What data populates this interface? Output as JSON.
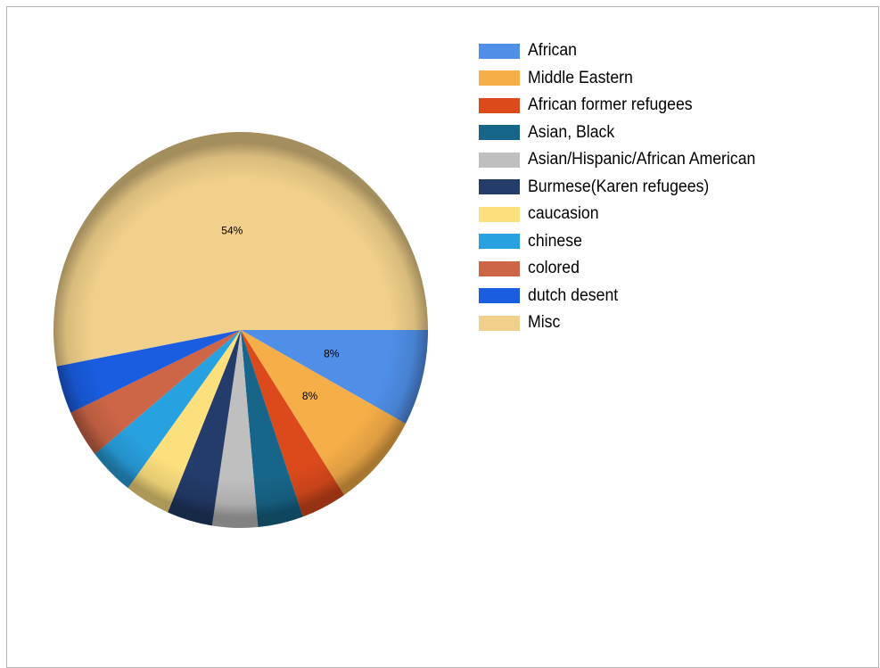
{
  "chart_data": {
    "type": "pie",
    "title": "",
    "legend_position": "top-right",
    "slices": [
      {
        "label": "African",
        "value": 8,
        "color": "#4f8fe8",
        "data_label": "8%"
      },
      {
        "label": "Middle Eastern",
        "value": 8,
        "color": "#f6ae48",
        "data_label": "8%"
      },
      {
        "label": "African former refugees",
        "value": 4,
        "color": "#dc4a1c",
        "data_label": ""
      },
      {
        "label": "Asian, Black",
        "value": 4,
        "color": "#17668a",
        "data_label": ""
      },
      {
        "label": "Asian/Hispanic/African American",
        "value": 4,
        "color": "#bfbfbf",
        "data_label": ""
      },
      {
        "label": "Burmese(Karen refugees)",
        "value": 4,
        "color": "#233c6a",
        "data_label": ""
      },
      {
        "label": "caucasion",
        "value": 4,
        "color": "#fde07e",
        "data_label": ""
      },
      {
        "label": "chinese",
        "value": 4,
        "color": "#28a1e0",
        "data_label": ""
      },
      {
        "label": "colored",
        "value": 4,
        "color": "#cd6647",
        "data_label": ""
      },
      {
        "label": "dutch desent",
        "value": 4,
        "color": "#1a5de0",
        "data_label": ""
      },
      {
        "label": "Misc",
        "value": 54,
        "color": "#f0d08a",
        "data_label": "54%"
      }
    ]
  }
}
